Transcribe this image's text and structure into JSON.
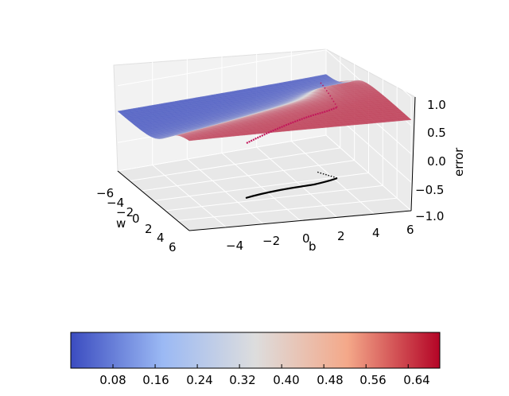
{
  "chart_data": {
    "type": "surface3d",
    "xlabel": "b",
    "ylabel": "w",
    "zlabel": "error",
    "xlim": [
      -6,
      6
    ],
    "ylim": [
      -6,
      6
    ],
    "zlim": [
      -1.0,
      1.0
    ],
    "x_ticks": [
      "−4",
      "−2",
      "0",
      "2",
      "4",
      "6"
    ],
    "y_ticks": [
      "−6",
      "−4",
      "−2",
      "0",
      "2",
      "4",
      "6"
    ],
    "z_ticks": [
      "−1.0",
      "−0.5",
      "0.0",
      "0.5",
      "1.0"
    ],
    "surface_z_range": [
      0.0,
      0.7
    ],
    "colormap": {
      "name": "coolwarm",
      "low": "#3b4cc0",
      "mid": "#dddddd",
      "high": "#b40426"
    },
    "colorbar": {
      "orientation": "horizontal",
      "ticks": [
        "0.08",
        "0.16",
        "0.24",
        "0.32",
        "0.40",
        "0.48",
        "0.56",
        "0.64"
      ],
      "range": [
        0.0,
        0.7
      ]
    },
    "trajectory": {
      "color_surface": "#c2185b",
      "color_floor": "#000000",
      "start_bw": [
        -4.0,
        -1.8
      ],
      "end_bw": [
        4.5,
        2.2
      ]
    },
    "grid": true
  }
}
